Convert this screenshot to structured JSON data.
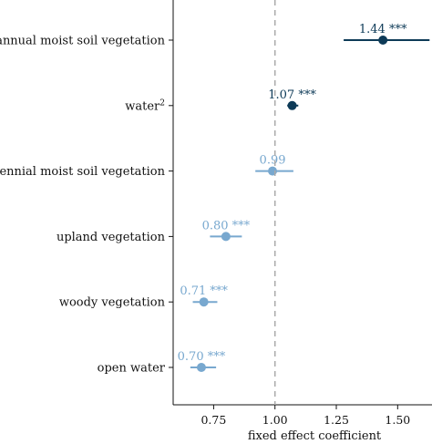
{
  "chart_data": {
    "type": "forest",
    "xlabel": "fixed effect coefficient",
    "xlim": [
      0.585,
      1.64
    ],
    "xticks": [
      0.75,
      1.0,
      1.25,
      1.5
    ],
    "xtick_labels": [
      "0.75",
      "1.00",
      "1.25",
      "1.50"
    ],
    "reference_line": 1.0,
    "grid": false,
    "rows": [
      {
        "category": "annual moist soil vegetation",
        "category_sup": "",
        "estimate": 1.44,
        "low": 1.28,
        "high": 1.63,
        "label": "1.44",
        "significance": "***",
        "color": "#0d3a57"
      },
      {
        "category": "water",
        "category_sup": "2",
        "estimate": 1.07,
        "low": 1.05,
        "high": 1.095,
        "label": "1.07",
        "significance": "***",
        "color": "#0d3a57"
      },
      {
        "category": "perennial moist soil vegetation",
        "category_sup": "",
        "estimate": 0.99,
        "low": 0.92,
        "high": 1.075,
        "label": "0.99",
        "significance": "",
        "color": "#78a8cf"
      },
      {
        "category": "upland vegetation",
        "category_sup": "",
        "estimate": 0.8,
        "low": 0.735,
        "high": 0.865,
        "label": "0.80",
        "significance": "***",
        "color": "#78a8cf"
      },
      {
        "category": "woody vegetation",
        "category_sup": "",
        "estimate": 0.71,
        "low": 0.665,
        "high": 0.765,
        "label": "0.71",
        "significance": "***",
        "color": "#78a8cf"
      },
      {
        "category": "open water",
        "category_sup": "",
        "estimate": 0.7,
        "low": 0.655,
        "high": 0.76,
        "label": "0.70",
        "significance": "***",
        "color": "#78a8cf"
      }
    ]
  }
}
